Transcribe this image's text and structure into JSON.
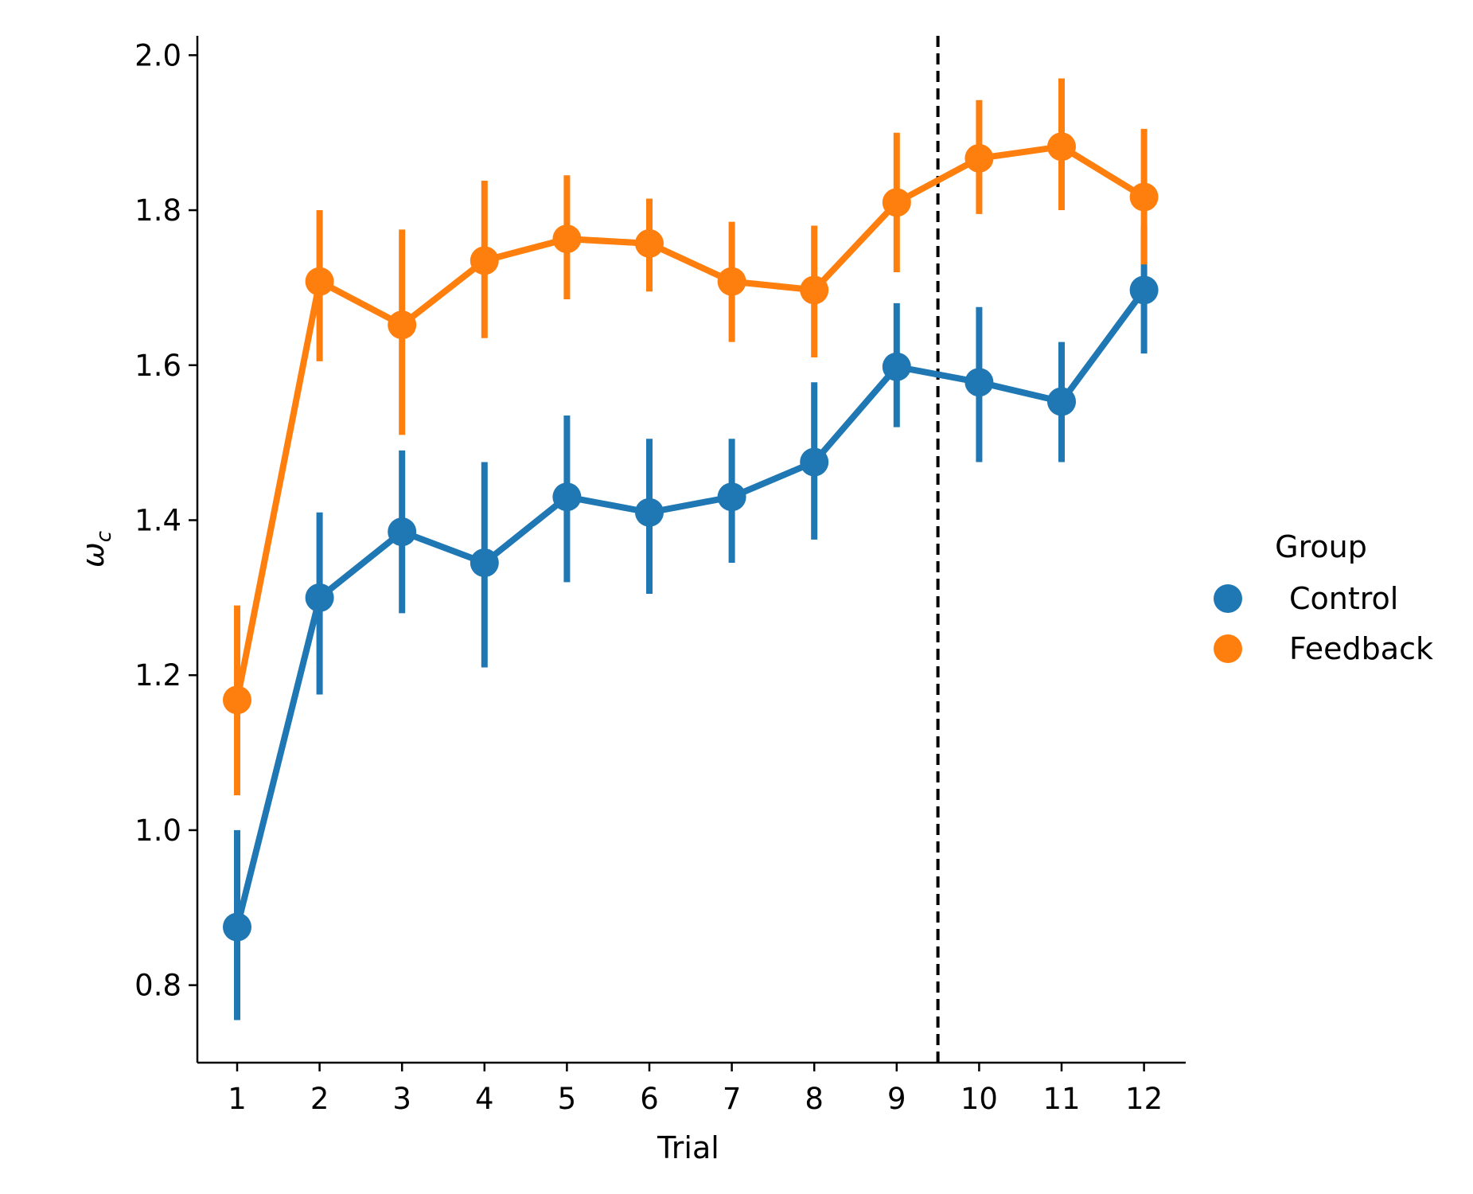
{
  "chart_data": {
    "type": "line",
    "xlabel": "Trial",
    "ylabel": "ω_c",
    "categories": [
      "1",
      "2",
      "3",
      "4",
      "5",
      "6",
      "7",
      "8",
      "9",
      "10",
      "11",
      "12"
    ],
    "ylim": [
      0.7,
      2.025
    ],
    "yticks": [
      0.8,
      1.0,
      1.2,
      1.4,
      1.6,
      1.8,
      2.0
    ],
    "ytick_labels": [
      "0.8",
      "1.0",
      "1.2",
      "1.4",
      "1.6",
      "1.8",
      "2.0"
    ],
    "grid": false,
    "vline_at_x": 9.5,
    "legend": {
      "title": "Group",
      "placement": "right"
    },
    "series": [
      {
        "name": "Control",
        "color": "#1f77b4",
        "values": [
          0.875,
          1.3,
          1.385,
          1.345,
          1.43,
          1.41,
          1.43,
          1.475,
          1.598,
          1.578,
          1.553,
          1.697
        ],
        "ci_low": [
          0.755,
          1.175,
          1.28,
          1.21,
          1.32,
          1.305,
          1.345,
          1.375,
          1.52,
          1.475,
          1.475,
          1.615
        ],
        "ci_high": [
          1.0,
          1.41,
          1.49,
          1.475,
          1.535,
          1.505,
          1.505,
          1.578,
          1.68,
          1.675,
          1.63,
          1.78
        ]
      },
      {
        "name": "Feedback",
        "color": "#ff7f0e",
        "values": [
          1.168,
          1.708,
          1.652,
          1.735,
          1.763,
          1.757,
          1.708,
          1.697,
          1.81,
          1.867,
          1.882,
          1.817
        ],
        "ci_low": [
          1.045,
          1.605,
          1.51,
          1.635,
          1.685,
          1.695,
          1.63,
          1.61,
          1.72,
          1.795,
          1.8,
          1.73
        ],
        "ci_high": [
          1.29,
          1.8,
          1.775,
          1.838,
          1.845,
          1.815,
          1.785,
          1.78,
          1.9,
          1.942,
          1.97,
          1.905
        ]
      }
    ]
  }
}
